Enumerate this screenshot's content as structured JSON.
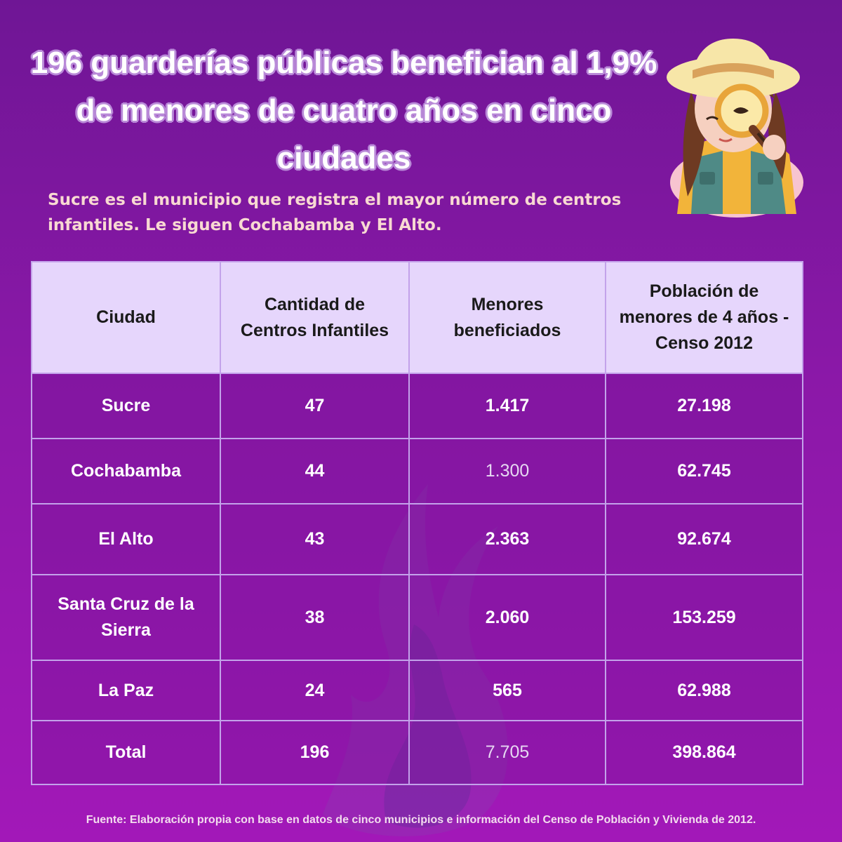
{
  "title": "196 guarderías públicas benefician al 1,9% de menores de cuatro años en cinco ciudades",
  "subtitle": "Sucre es el municipio que registra el mayor número de centros infantiles. Le siguen Cochabamba y El Alto.",
  "table": {
    "headers": [
      "Ciudad",
      "Cantidad de Centros Infantiles",
      "Menores beneficiados",
      "Población de menores de 4 años - Censo 2012"
    ],
    "rows": [
      [
        "Sucre",
        "47",
        "1.417",
        "27.198"
      ],
      [
        "Cochabamba",
        "44",
        "1.300",
        "62.745"
      ],
      [
        "El Alto",
        "43",
        "2.363",
        "92.674"
      ],
      [
        "Santa Cruz de la Sierra",
        "38",
        "2.060",
        "153.259"
      ],
      [
        "La Paz",
        "24",
        "565",
        "62.988"
      ],
      [
        "Total",
        "196",
        "7.705",
        "398.864"
      ]
    ]
  },
  "source": "Fuente: Elaboración propia con base en datos de cinco municipios e información del Censo de Población y Vivienda de 2012.",
  "colors": {
    "background_top": "#6f1695",
    "background_bottom": "#a218b8",
    "header_fill": "#e6d6fc",
    "border": "#c3a2ea",
    "subtitle_text": "#f8d9d2"
  },
  "icons": [
    "girl-with-magnifier-illustration",
    "flame-watermark"
  ]
}
